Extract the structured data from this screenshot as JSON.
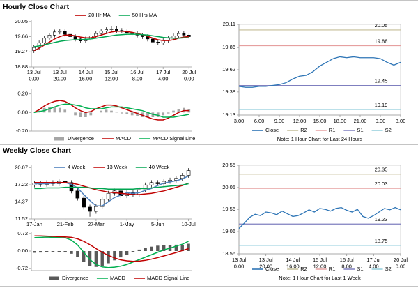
{
  "headers": [
    "Hourly Close Chart",
    "Weekly Close Chart"
  ],
  "chart_data": [
    {
      "type": "candlestick",
      "categories": [
        [
          "13 Jul",
          "0.00"
        ],
        null,
        null,
        null,
        null,
        [
          "13 Jul",
          "20.00"
        ],
        null,
        null,
        null,
        null,
        [
          "14 Jul",
          "16.00"
        ],
        null,
        null,
        null,
        null,
        [
          "15 Jul",
          "12.00"
        ],
        null,
        null,
        null,
        null,
        [
          "16 Jul",
          "8.00"
        ],
        null,
        null,
        null,
        null,
        [
          "17 Jul",
          "4.00"
        ],
        null,
        null,
        null,
        null,
        [
          "20 Jul",
          "0.00"
        ]
      ],
      "open": [
        19.3,
        19.38,
        19.5,
        19.62,
        19.7,
        19.78,
        19.8,
        19.72,
        19.66,
        19.6,
        19.55,
        19.6,
        19.68,
        19.74,
        19.8,
        19.84,
        19.86,
        19.82,
        19.8,
        19.76,
        19.74,
        19.7,
        19.66,
        19.6,
        19.52,
        19.5,
        19.56,
        19.62,
        19.68,
        19.74,
        19.7
      ],
      "high": [
        19.44,
        19.56,
        19.68,
        19.76,
        19.84,
        19.86,
        19.86,
        19.78,
        19.72,
        19.66,
        19.66,
        19.74,
        19.8,
        19.86,
        19.9,
        19.92,
        19.92,
        19.88,
        19.86,
        19.82,
        19.8,
        19.76,
        19.72,
        19.66,
        19.58,
        19.62,
        19.68,
        19.74,
        19.8,
        19.8,
        19.76
      ],
      "low": [
        19.24,
        19.32,
        19.44,
        19.56,
        19.64,
        19.72,
        19.66,
        19.6,
        19.54,
        19.49,
        19.49,
        19.54,
        19.62,
        19.68,
        19.74,
        19.78,
        19.76,
        19.74,
        19.7,
        19.68,
        19.64,
        19.6,
        19.54,
        19.46,
        19.44,
        19.44,
        19.5,
        19.56,
        19.62,
        19.64,
        19.6
      ],
      "close": [
        19.38,
        19.5,
        19.62,
        19.7,
        19.78,
        19.8,
        19.72,
        19.66,
        19.6,
        19.55,
        19.6,
        19.68,
        19.74,
        19.8,
        19.84,
        19.86,
        19.82,
        19.8,
        19.76,
        19.74,
        19.7,
        19.66,
        19.6,
        19.52,
        19.5,
        19.56,
        19.62,
        19.68,
        19.74,
        19.7,
        19.66
      ],
      "series": [
        {
          "name": "20 Hr MA",
          "color": "#c00000",
          "values": [
            19.3,
            19.36,
            19.44,
            19.52,
            19.6,
            19.66,
            19.7,
            19.7,
            19.68,
            19.65,
            19.63,
            19.63,
            19.66,
            19.7,
            19.74,
            19.78,
            19.8,
            19.8,
            19.79,
            19.77,
            19.74,
            19.71,
            19.67,
            19.62,
            19.58,
            19.56,
            19.56,
            19.58,
            19.62,
            19.65,
            19.66
          ]
        },
        {
          "name": "50 Hrs MA",
          "color": "#00a651",
          "values": [
            19.4,
            19.42,
            19.45,
            19.48,
            19.51,
            19.54,
            19.56,
            19.57,
            19.58,
            19.58,
            19.59,
            19.6,
            19.62,
            19.64,
            19.66,
            19.68,
            19.7,
            19.71,
            19.72,
            19.72,
            19.72,
            19.71,
            19.7,
            19.68,
            19.66,
            19.64,
            19.63,
            19.62,
            19.62,
            19.63,
            19.63
          ]
        }
      ],
      "ylim": [
        18.88,
        20.1
      ],
      "yticks": [
        18.88,
        19.27,
        19.66,
        20.05
      ]
    },
    {
      "type": "combo",
      "series": [
        {
          "name": "Divergence",
          "kind": "bar",
          "color": "#a6a6a6",
          "values": [
            0.0,
            0.02,
            0.05,
            0.06,
            0.06,
            0.05,
            0.03,
            0.0,
            -0.03,
            -0.05,
            -0.05,
            -0.03,
            0.0,
            0.02,
            0.03,
            0.02,
            0.01,
            -0.01,
            -0.02,
            -0.03,
            -0.04,
            -0.05,
            -0.05,
            -0.05,
            -0.05,
            -0.03,
            -0.01,
            0.02,
            0.04,
            0.05,
            0.04
          ]
        },
        {
          "name": "MACD",
          "kind": "line",
          "color": "#c00000",
          "values": [
            0.0,
            0.03,
            0.07,
            0.1,
            0.12,
            0.13,
            0.12,
            0.09,
            0.05,
            0.02,
            0.0,
            0.01,
            0.04,
            0.06,
            0.08,
            0.08,
            0.07,
            0.05,
            0.03,
            0.01,
            -0.01,
            -0.03,
            -0.05,
            -0.07,
            -0.08,
            -0.08,
            -0.06,
            -0.03,
            0.0,
            0.02,
            0.02
          ]
        },
        {
          "name": "MACD Signal Line",
          "kind": "line",
          "color": "#00b050",
          "values": [
            0.0,
            0.01,
            0.02,
            0.04,
            0.06,
            0.08,
            0.09,
            0.09,
            0.08,
            0.07,
            0.05,
            0.04,
            0.04,
            0.04,
            0.05,
            0.06,
            0.06,
            0.06,
            0.05,
            0.04,
            0.03,
            0.02,
            0.0,
            -0.02,
            -0.03,
            -0.05,
            -0.05,
            -0.05,
            -0.04,
            -0.03,
            -0.02
          ]
        }
      ],
      "ylim": [
        -0.2,
        0.25
      ],
      "yticks": [
        {
          "value": -0.2,
          "label": "-0.20"
        },
        {
          "value": 0,
          "label": "0.00"
        },
        {
          "value": 0.2,
          "label": "0.20"
        }
      ]
    },
    {
      "type": "line",
      "categories": [
        "3.00",
        null,
        null,
        "6.00",
        null,
        null,
        "9.00",
        null,
        null,
        "12.00",
        null,
        null,
        "15.00",
        null,
        null,
        "18.00",
        null,
        null,
        "21.00",
        null,
        null,
        "0.00",
        null,
        null,
        "3.00"
      ],
      "series": [
        {
          "name": "Close",
          "color": "#2e75b6",
          "values": [
            19.44,
            19.43,
            19.43,
            19.44,
            19.44,
            19.45,
            19.46,
            19.48,
            19.52,
            19.55,
            19.56,
            19.6,
            19.66,
            19.7,
            19.74,
            19.76,
            19.75,
            19.76,
            19.75,
            19.75,
            19.75,
            19.74,
            19.7,
            19.67,
            19.7
          ]
        }
      ],
      "levels": [
        {
          "name": "R2",
          "color": "#c4bd97",
          "value": 20.05
        },
        {
          "name": "R1",
          "color": "#e6a0a0",
          "value": 19.88
        },
        {
          "name": "S1",
          "color": "#7f7fbf",
          "value": 19.45
        },
        {
          "name": "S2",
          "color": "#92cddc",
          "value": 19.19
        }
      ],
      "ylim": [
        19.13,
        20.11
      ],
      "yticks": [
        19.13,
        19.38,
        19.62,
        19.86,
        20.11
      ],
      "note": "Note: 1 Hour Chart for Last 24 Hours"
    },
    {
      "type": "candlestick",
      "categories": [
        "17-Jan",
        null,
        null,
        null,
        null,
        "21-Feb",
        null,
        null,
        null,
        null,
        "27-Mar",
        null,
        null,
        null,
        null,
        "1-May",
        null,
        null,
        null,
        null,
        "5-Jun",
        null,
        null,
        null,
        null,
        "10-Jul"
      ],
      "open": [
        17.2,
        17.5,
        17.3,
        17.6,
        17.4,
        17.8,
        17.6,
        16.2,
        15.0,
        13.5,
        12.8,
        13.6,
        14.8,
        15.8,
        16.2,
        15.4,
        16.0,
        15.6,
        16.4,
        17.2,
        17.6,
        17.4,
        17.8,
        18.0,
        18.3,
        18.8
      ],
      "high": [
        17.9,
        17.9,
        18.0,
        18.0,
        18.2,
        18.2,
        18.0,
        16.6,
        15.4,
        13.9,
        14.0,
        15.2,
        16.2,
        16.6,
        16.6,
        16.4,
        16.4,
        16.8,
        17.6,
        18.0,
        18.0,
        18.2,
        18.4,
        18.7,
        19.2,
        20.0
      ],
      "low": [
        16.8,
        16.9,
        16.9,
        17.0,
        17.0,
        17.2,
        15.8,
        14.6,
        13.1,
        11.9,
        12.4,
        13.2,
        14.4,
        15.4,
        15.0,
        15.0,
        15.2,
        15.2,
        16.0,
        16.8,
        17.0,
        17.0,
        17.4,
        17.6,
        17.9,
        18.4
      ],
      "close": [
        17.5,
        17.3,
        17.6,
        17.4,
        17.8,
        17.6,
        16.2,
        15.0,
        13.5,
        12.8,
        13.6,
        14.8,
        15.8,
        16.2,
        15.4,
        16.0,
        15.6,
        16.4,
        17.2,
        17.6,
        17.4,
        17.8,
        18.0,
        18.3,
        18.8,
        19.6
      ],
      "series": [
        {
          "name": "4 Week",
          "color": "#4f81bd",
          "values": [
            17.4,
            17.4,
            17.4,
            17.5,
            17.5,
            17.6,
            17.3,
            16.7,
            15.6,
            14.6,
            13.7,
            13.7,
            14.4,
            15.1,
            15.5,
            15.9,
            15.8,
            15.9,
            16.3,
            16.6,
            17.1,
            17.5,
            17.7,
            17.9,
            18.2,
            18.7
          ]
        },
        {
          "name": "13 Week",
          "color": "#c00000",
          "values": [
            17.6,
            17.6,
            17.6,
            17.6,
            17.6,
            17.6,
            17.5,
            17.3,
            17.0,
            16.7,
            16.4,
            16.2,
            16.0,
            15.9,
            15.8,
            15.7,
            15.6,
            15.6,
            15.7,
            15.8,
            16.0,
            16.2,
            16.5,
            16.8,
            17.1,
            17.5
          ]
        },
        {
          "name": "40 Week",
          "color": "#00a651",
          "values": [
            16.6,
            16.6,
            16.7,
            16.7,
            16.7,
            16.8,
            16.8,
            16.8,
            16.8,
            16.7,
            16.6,
            16.6,
            16.5,
            16.5,
            16.5,
            16.5,
            16.5,
            16.6,
            16.6,
            16.7,
            16.8,
            16.9,
            17.0,
            17.1,
            17.2,
            17.4
          ]
        }
      ],
      "ylim": [
        11.52,
        20.6
      ],
      "yticks": [
        11.52,
        14.37,
        17.22,
        20.07
      ]
    },
    {
      "type": "combo",
      "series": [
        {
          "name": "Divergence",
          "kind": "bar",
          "color": "#595959",
          "values": [
            -0.07,
            -0.06,
            -0.04,
            -0.04,
            -0.04,
            -0.04,
            -0.11,
            -0.25,
            -0.45,
            -0.61,
            -0.65,
            -0.6,
            -0.5,
            -0.38,
            -0.26,
            -0.15,
            -0.03,
            0.06,
            0.13,
            0.18,
            0.22,
            0.25,
            0.25,
            0.26,
            0.26,
            0.3
          ]
        },
        {
          "name": "MACD",
          "kind": "line",
          "color": "#00b050",
          "values": [
            0.55,
            0.56,
            0.57,
            0.56,
            0.55,
            0.54,
            0.45,
            0.25,
            -0.05,
            -0.35,
            -0.55,
            -0.65,
            -0.68,
            -0.66,
            -0.62,
            -0.55,
            -0.45,
            -0.35,
            -0.25,
            -0.15,
            -0.05,
            0.05,
            0.12,
            0.2,
            0.28,
            0.4
          ]
        },
        {
          "name": "MACD Signal Line",
          "kind": "line",
          "color": "#c00000",
          "values": [
            0.62,
            0.62,
            0.61,
            0.6,
            0.59,
            0.58,
            0.56,
            0.5,
            0.4,
            0.26,
            0.1,
            -0.05,
            -0.18,
            -0.28,
            -0.36,
            -0.4,
            -0.42,
            -0.41,
            -0.38,
            -0.33,
            -0.27,
            -0.2,
            -0.13,
            -0.06,
            0.02,
            0.1
          ]
        }
      ],
      "ylim": [
        -0.8,
        0.8
      ],
      "yticks": [
        -0.72,
        {
          "value": 0,
          "label": "0.00"
        },
        0.72
      ]
    },
    {
      "type": "line",
      "categories": [
        [
          "13 Jul",
          "0.00"
        ],
        null,
        null,
        null,
        null,
        [
          "13 Jul",
          "20.00"
        ],
        null,
        null,
        null,
        null,
        [
          "14 Jul",
          "16.00"
        ],
        null,
        null,
        null,
        null,
        [
          "15 Jul",
          "12.00"
        ],
        null,
        null,
        null,
        null,
        [
          "16 Jul",
          "8.00"
        ],
        null,
        null,
        null,
        null,
        [
          "17 Jul",
          "4.00"
        ],
        null,
        null,
        null,
        null,
        [
          "20 Jul",
          "0.00"
        ]
      ],
      "series": [
        {
          "name": "Close",
          "color": "#2e75b6",
          "values": [
            19.13,
            19.25,
            19.38,
            19.45,
            19.42,
            19.5,
            19.48,
            19.44,
            19.52,
            19.46,
            19.4,
            19.42,
            19.48,
            19.55,
            19.5,
            19.58,
            19.56,
            19.52,
            19.58,
            19.6,
            19.54,
            19.5,
            19.56,
            19.4,
            19.36,
            19.42,
            19.5,
            19.58,
            19.55,
            19.6,
            19.55
          ]
        }
      ],
      "levels": [
        {
          "name": "R2",
          "color": "#c4bd97",
          "value": 20.35
        },
        {
          "name": "R1",
          "color": "#e6a0a0",
          "value": 20.03
        },
        {
          "name": "S1",
          "color": "#7f7fbf",
          "value": 19.23
        },
        {
          "name": "S2",
          "color": "#92cddc",
          "value": 18.75
        }
      ],
      "ylim": [
        18.56,
        20.55
      ],
      "yticks": [
        18.56,
        19.06,
        19.56,
        20.05,
        20.55
      ],
      "note": "Note: 1 Hour Chart for Last 1 Week"
    }
  ]
}
